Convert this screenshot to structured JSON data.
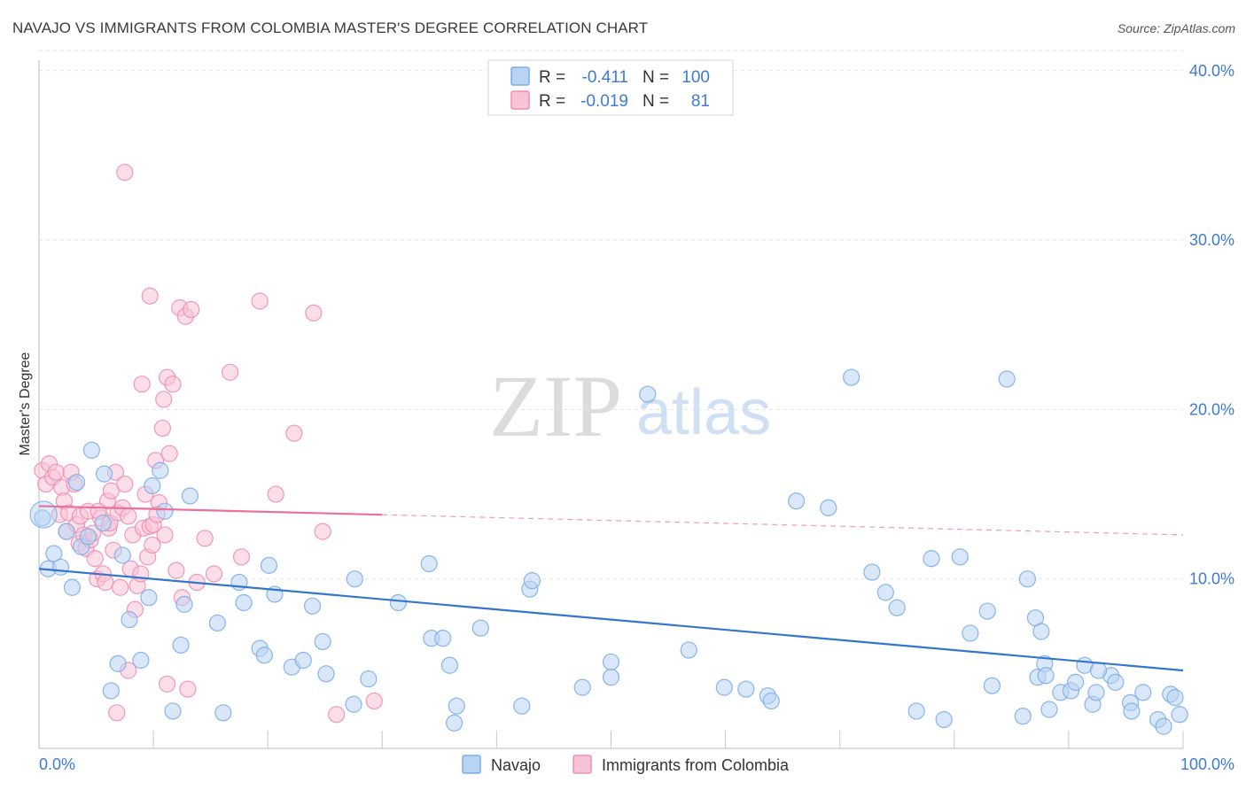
{
  "title": "NAVAJO VS IMMIGRANTS FROM COLOMBIA MASTER'S DEGREE CORRELATION CHART",
  "source": "Source: ZipAtlas.com",
  "watermark": {
    "zip": "ZIP",
    "atlas": "atlas"
  },
  "legend_box": {
    "rows": [
      {
        "r_label": "R = ",
        "r_value": "-0.411",
        "n_label": "N = ",
        "n_value": "100"
      },
      {
        "r_label": "R = ",
        "r_value": "-0.019",
        "n_label": "N = ",
        "n_value": "81"
      }
    ]
  },
  "chart_data": {
    "type": "scatter",
    "title": "NAVAJO VS IMMIGRANTS FROM COLOMBIA MASTER'S DEGREE CORRELATION CHART",
    "xlabel": "",
    "ylabel": "Master's Degree",
    "xlim": [
      0,
      100
    ],
    "ylim": [
      0,
      42
    ],
    "x_tick_labels": [
      "0.0%",
      "100.0%"
    ],
    "y_ticks": [
      10,
      20,
      30,
      40
    ],
    "y_tick_labels": [
      "10.0%",
      "20.0%",
      "30.0%",
      "40.0%"
    ],
    "grid": true,
    "legend_position": "bottom",
    "series": [
      {
        "name": "Navajo",
        "color": "#7aaee8",
        "fill": "#b9d3f3",
        "r": -0.411,
        "n": 100,
        "trend": {
          "x0": 0,
          "y0": 10.6,
          "x1": 100,
          "y1": 4.6,
          "solid_until": 100
        },
        "points": [
          [
            0.3,
            13.6
          ],
          [
            0.8,
            10.6
          ],
          [
            1.3,
            11.5
          ],
          [
            1.9,
            10.7
          ],
          [
            2.4,
            12.8
          ],
          [
            2.9,
            9.5
          ],
          [
            3.3,
            15.7
          ],
          [
            3.7,
            11.9
          ],
          [
            4.3,
            12.5
          ],
          [
            4.6,
            17.6
          ],
          [
            5.7,
            16.2
          ],
          [
            5.6,
            13.3
          ],
          [
            6.3,
            3.4
          ],
          [
            6.9,
            5.0
          ],
          [
            7.3,
            11.4
          ],
          [
            7.9,
            7.6
          ],
          [
            8.9,
            5.2
          ],
          [
            9.6,
            8.9
          ],
          [
            9.9,
            15.5
          ],
          [
            10.6,
            16.4
          ],
          [
            11.0,
            14.0
          ],
          [
            11.7,
            2.2
          ],
          [
            12.4,
            6.1
          ],
          [
            12.7,
            8.5
          ],
          [
            13.2,
            14.9
          ],
          [
            15.6,
            7.4
          ],
          [
            16.1,
            2.1
          ],
          [
            17.5,
            9.8
          ],
          [
            17.9,
            8.6
          ],
          [
            19.3,
            5.9
          ],
          [
            19.7,
            5.5
          ],
          [
            20.1,
            10.8
          ],
          [
            20.6,
            9.1
          ],
          [
            22.1,
            4.8
          ],
          [
            23.1,
            5.2
          ],
          [
            23.9,
            8.4
          ],
          [
            24.8,
            6.3
          ],
          [
            25.1,
            4.4
          ],
          [
            27.5,
            2.6
          ],
          [
            27.6,
            10.0
          ],
          [
            28.8,
            4.1
          ],
          [
            31.4,
            8.6
          ],
          [
            34.1,
            10.9
          ],
          [
            34.3,
            6.5
          ],
          [
            35.3,
            6.5
          ],
          [
            35.9,
            4.9
          ],
          [
            36.3,
            1.5
          ],
          [
            36.5,
            2.5
          ],
          [
            38.6,
            7.1
          ],
          [
            42.2,
            2.5
          ],
          [
            42.9,
            9.4
          ],
          [
            43.1,
            9.9
          ],
          [
            47.5,
            3.6
          ],
          [
            50.0,
            4.2
          ],
          [
            50.0,
            5.1
          ],
          [
            53.2,
            20.9
          ],
          [
            56.8,
            5.8
          ],
          [
            59.9,
            3.6
          ],
          [
            61.8,
            3.5
          ],
          [
            63.7,
            3.1
          ],
          [
            64.0,
            2.8
          ],
          [
            66.2,
            14.6
          ],
          [
            69.0,
            14.2
          ],
          [
            71.0,
            21.9
          ],
          [
            72.8,
            10.4
          ],
          [
            74.0,
            9.2
          ],
          [
            75.0,
            8.3
          ],
          [
            76.7,
            2.2
          ],
          [
            78.0,
            11.2
          ],
          [
            79.1,
            1.7
          ],
          [
            80.5,
            11.3
          ],
          [
            81.4,
            6.8
          ],
          [
            82.9,
            8.1
          ],
          [
            83.3,
            3.7
          ],
          [
            84.6,
            21.8
          ],
          [
            86.0,
            1.9
          ],
          [
            86.4,
            10.0
          ],
          [
            87.1,
            7.7
          ],
          [
            87.3,
            4.2
          ],
          [
            87.6,
            6.9
          ],
          [
            87.9,
            5.0
          ],
          [
            88.0,
            4.3
          ],
          [
            88.3,
            2.3
          ],
          [
            89.3,
            3.3
          ],
          [
            90.2,
            3.4
          ],
          [
            90.6,
            3.9
          ],
          [
            91.4,
            4.9
          ],
          [
            92.1,
            2.6
          ],
          [
            92.4,
            3.3
          ],
          [
            93.7,
            4.3
          ],
          [
            94.1,
            3.9
          ],
          [
            95.4,
            2.7
          ],
          [
            95.5,
            2.2
          ],
          [
            96.5,
            3.3
          ],
          [
            97.8,
            1.7
          ],
          [
            98.3,
            1.3
          ],
          [
            98.9,
            3.2
          ],
          [
            99.3,
            3.0
          ],
          [
            99.7,
            2.0
          ],
          [
            92.6,
            4.6
          ]
        ]
      },
      {
        "name": "Immigrants from Colombia",
        "color": "#f08db0",
        "fill": "#f9c3d6",
        "r": -0.019,
        "n": 81,
        "trend": {
          "x0": 0,
          "y0": 14.3,
          "x1": 100,
          "y1": 12.6,
          "solid_until": 30
        },
        "points": [
          [
            0.3,
            16.4
          ],
          [
            0.6,
            15.6
          ],
          [
            0.9,
            16.8
          ],
          [
            1.2,
            16.0
          ],
          [
            1.5,
            16.3
          ],
          [
            1.8,
            13.8
          ],
          [
            2.0,
            15.4
          ],
          [
            2.2,
            14.6
          ],
          [
            2.4,
            12.8
          ],
          [
            2.6,
            13.9
          ],
          [
            2.8,
            16.3
          ],
          [
            3.1,
            15.6
          ],
          [
            3.3,
            13.2
          ],
          [
            3.5,
            12.1
          ],
          [
            3.6,
            13.7
          ],
          [
            3.9,
            12.6
          ],
          [
            4.1,
            11.8
          ],
          [
            4.3,
            14.0
          ],
          [
            4.5,
            12.3
          ],
          [
            4.7,
            12.7
          ],
          [
            4.9,
            11.2
          ],
          [
            5.1,
            10.0
          ],
          [
            5.4,
            13.6
          ],
          [
            5.6,
            10.3
          ],
          [
            5.8,
            9.8
          ],
          [
            6.0,
            14.6
          ],
          [
            6.1,
            13.0
          ],
          [
            6.2,
            13.3
          ],
          [
            6.3,
            15.2
          ],
          [
            6.5,
            11.7
          ],
          [
            6.7,
            16.3
          ],
          [
            6.9,
            13.9
          ],
          [
            7.1,
            9.5
          ],
          [
            7.3,
            14.2
          ],
          [
            7.5,
            15.6
          ],
          [
            7.8,
            13.7
          ],
          [
            8.0,
            10.6
          ],
          [
            8.2,
            12.6
          ],
          [
            8.4,
            8.2
          ],
          [
            8.6,
            9.6
          ],
          [
            8.9,
            10.3
          ],
          [
            9.1,
            13.0
          ],
          [
            9.3,
            15.0
          ],
          [
            9.5,
            11.3
          ],
          [
            9.7,
            13.1
          ],
          [
            9.9,
            12.0
          ],
          [
            10.0,
            13.2
          ],
          [
            10.2,
            17.0
          ],
          [
            10.5,
            14.5
          ],
          [
            10.8,
            18.9
          ],
          [
            11.2,
            21.9
          ],
          [
            11.7,
            21.5
          ],
          [
            10.9,
            20.6
          ],
          [
            11.4,
            17.4
          ],
          [
            12.0,
            10.5
          ],
          [
            12.3,
            26.0
          ],
          [
            12.8,
            25.5
          ],
          [
            13.3,
            25.9
          ],
          [
            13.8,
            9.8
          ],
          [
            14.5,
            12.4
          ],
          [
            7.5,
            34.0
          ],
          [
            9.0,
            21.5
          ],
          [
            9.7,
            26.7
          ],
          [
            10.3,
            13.8
          ],
          [
            11.0,
            12.6
          ],
          [
            12.5,
            8.9
          ],
          [
            13.0,
            3.5
          ],
          [
            15.3,
            10.3
          ],
          [
            16.7,
            22.2
          ],
          [
            17.7,
            11.3
          ],
          [
            19.3,
            26.4
          ],
          [
            20.7,
            15.0
          ],
          [
            22.3,
            18.6
          ],
          [
            24.0,
            25.7
          ],
          [
            24.8,
            12.8
          ],
          [
            26.0,
            2.0
          ],
          [
            29.3,
            2.8
          ],
          [
            6.8,
            2.1
          ],
          [
            7.8,
            4.6
          ],
          [
            11.2,
            3.8
          ],
          [
            5.2,
            14.0
          ]
        ]
      }
    ]
  }
}
